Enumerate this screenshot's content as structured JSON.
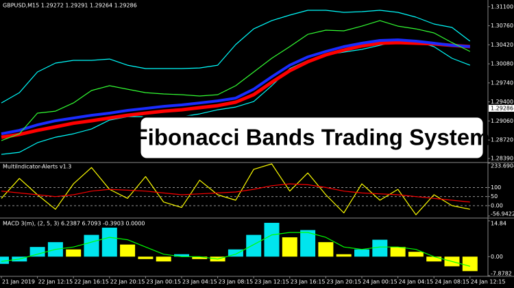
{
  "chart_data": [
    {
      "type": "line",
      "title": "GBPUSD,M15  1.29272 1.29291 1.29264 1.29286",
      "annotation": "Fibonacci Bands Trading System",
      "categories": [
        "21 Jan 2019",
        null,
        "22 Jan 12:15",
        null,
        "22 Jan 16:15",
        null,
        "22 Jan 20:15",
        null,
        "23 Jan 00:15",
        null,
        "23 Jan 04:15",
        null,
        "23 Jan 08:15",
        null,
        "23 Jan 12:15",
        null,
        "23 Jan 16:15",
        null,
        "23 Jan 20:15",
        null,
        "24 Jan 00:15",
        null,
        "24 Jan 04:15",
        null,
        "24 Jan 08:15",
        null,
        "24 Jan 12:15"
      ],
      "series": [
        {
          "color": "#00ffff",
          "values": [
            1.29382,
            1.29566,
            1.29934,
            1.30093,
            1.30142,
            1.30142,
            1.30166,
            1.30056,
            1.29995,
            1.29995,
            1.29995,
            1.30007,
            1.30056,
            1.30424,
            1.30705,
            1.30852,
            1.3095,
            1.31036,
            1.31036,
            1.30999,
            1.31012,
            1.31036,
            1.30999,
            1.30914,
            1.30791,
            1.3073,
            1.30485
          ]
        },
        {
          "color": "#00ffff",
          "values": [
            1.28464,
            1.285,
            1.28672,
            1.2877,
            1.28831,
            1.28917,
            1.29076,
            1.29137,
            1.29137,
            1.29113,
            1.29137,
            1.29186,
            1.2926,
            1.29309,
            1.29407,
            1.29689,
            1.29995,
            1.30142,
            1.3024,
            1.30289,
            1.30338,
            1.30411,
            1.30485,
            1.30485,
            1.30387,
            1.30179,
            1.30056
          ]
        },
        {
          "color": "#ff0000",
          "width": 5,
          "values": [
            1.2877,
            1.28819,
            1.28892,
            1.28954,
            1.2902,
            1.29064,
            1.29113,
            1.29162,
            1.29199,
            1.29235,
            1.2926,
            1.29297,
            1.29333,
            1.29395,
            1.29529,
            1.2975,
            1.29958,
            1.30117,
            1.3024,
            1.30326,
            1.30399,
            1.30448,
            1.3046,
            1.30448,
            1.30436,
            1.30411,
            1.30387
          ]
        },
        {
          "color": "#1a2cff",
          "width": 4,
          "values": [
            1.28831,
            1.28892,
            1.2899,
            1.29064,
            1.29113,
            1.29162,
            1.29199,
            1.29248,
            1.29284,
            1.29321,
            1.29346,
            1.29382,
            1.29419,
            1.29468,
            1.29627,
            1.29848,
            1.30056,
            1.30203,
            1.30301,
            1.30387,
            1.30448,
            1.30497,
            1.30509,
            1.30485,
            1.30448,
            1.30411,
            1.30387
          ]
        },
        {
          "color": "#33ff33",
          "values": [
            1.28709,
            1.28831,
            1.29199,
            1.29235,
            1.29382,
            1.29603,
            1.29689,
            1.29627,
            1.29566,
            1.29542,
            1.29529,
            1.29505,
            1.29529,
            1.29689,
            1.29934,
            1.30179,
            1.30387,
            1.30607,
            1.30681,
            1.30669,
            1.30754,
            1.30852,
            1.30754,
            1.30705,
            1.30632,
            1.3046,
            1.30301
          ]
        }
      ],
      "ylim": [
        1.2833,
        1.3122
      ],
      "yticks": [
        {
          "value": 1.311,
          "label": "1.31100"
        },
        {
          "value": 1.3076,
          "label": "1.30760"
        },
        {
          "value": 1.3042,
          "label": "1.30420"
        },
        {
          "value": 1.3008,
          "label": "1.30080"
        },
        {
          "value": 1.2974,
          "label": "1.29740"
        },
        {
          "value": 1.294,
          "label": "1.29400"
        },
        {
          "value": 1.2906,
          "label": "1.29060"
        },
        {
          "value": 1.2872,
          "label": "1.28720"
        },
        {
          "value": 1.2839,
          "label": "1.28390"
        }
      ],
      "current_price": {
        "value": 1.29286,
        "label": "1.29286"
      }
    },
    {
      "type": "line",
      "title": "MultiIndicator-Alerts v1.3",
      "series": [
        {
          "color": "#ffff00",
          "values": [
            40,
            150,
            60,
            -20,
            120,
            210,
            90,
            40,
            160,
            20,
            -10,
            140,
            60,
            30,
            200,
            230,
            80,
            180,
            60,
            -40,
            120,
            30,
            90,
            -50,
            60,
            0,
            -20
          ]
        },
        {
          "color": "#ff0000",
          "values": [
            80,
            70,
            60,
            50,
            60,
            80,
            90,
            85,
            80,
            70,
            60,
            65,
            70,
            75,
            90,
            110,
            120,
            115,
            100,
            80,
            70,
            65,
            60,
            50,
            40,
            30,
            20
          ]
        }
      ],
      "ylim": [
        -56.9422,
        233.6904
      ],
      "yticks": [
        233.6904,
        100,
        50,
        {
          "value": 0,
          "label": "0.00"
        },
        -56.9422
      ]
    },
    {
      "type": "macd",
      "title": "MACD 3(m), (2, 5, 3) 6.2387 6.7093 -0.3903 0.0000",
      "series": [
        {
          "type": "bar",
          "colors": [
            "#00e5ee",
            "#ffff00"
          ],
          "values": [
            -3,
            -2,
            4,
            6,
            3,
            9,
            12,
            5,
            -1,
            -2,
            1,
            -1,
            -2,
            3,
            9,
            14,
            8,
            11,
            6,
            1,
            3,
            7,
            4,
            2,
            -2,
            -4,
            -6
          ]
        },
        {
          "type": "line",
          "color": "#00ff00",
          "values": [
            -2,
            -1,
            1,
            3,
            4,
            6,
            8,
            7,
            4,
            1,
            0,
            0,
            -1,
            1,
            5,
            9,
            10,
            10,
            8,
            4,
            3,
            4,
            4,
            3,
            0,
            -2,
            -4
          ]
        }
      ],
      "ylim": [
        -7.8782,
        14.84
      ],
      "yticks": [
        14.84,
        {
          "value": 0,
          "label": "0.00"
        },
        -7.8782
      ]
    }
  ]
}
